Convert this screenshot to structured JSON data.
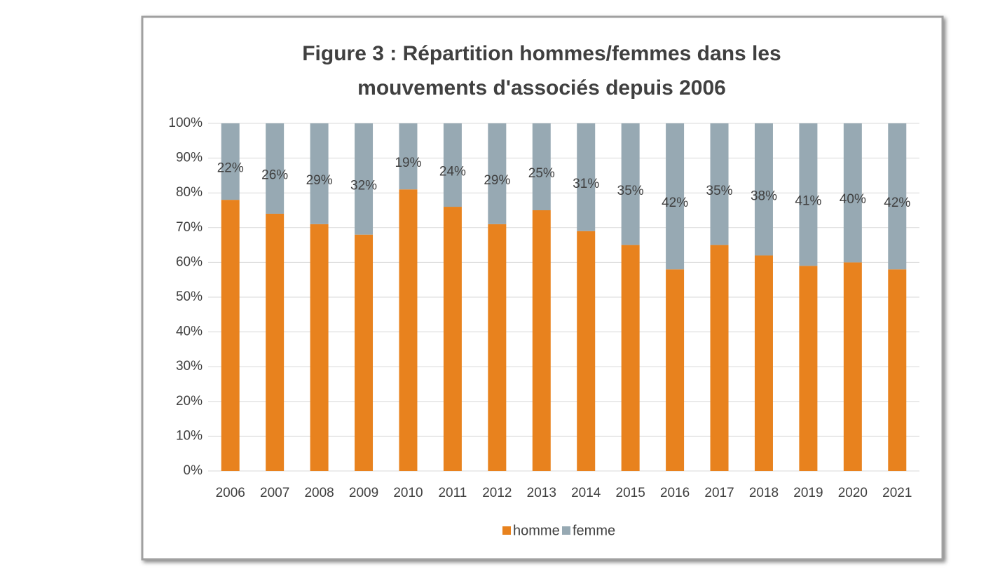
{
  "chart_data": {
    "type": "stacked_bar",
    "title": [
      "Figure 3 : Répartition hommes/femmes dans les",
      "mouvements d'associés depuis 2006"
    ],
    "categories": [
      "2006",
      "2007",
      "2008",
      "2009",
      "2010",
      "2011",
      "2012",
      "2013",
      "2014",
      "2015",
      "2016",
      "2017",
      "2018",
      "2019",
      "2020",
      "2021"
    ],
    "series": [
      {
        "name": "homme",
        "color": "#e8821e",
        "values": [
          78,
          74,
          71,
          68,
          81,
          76,
          71,
          75,
          69,
          65,
          58,
          65,
          62,
          59,
          60,
          58
        ]
      },
      {
        "name": "femme",
        "color": "#97a9b3",
        "values": [
          22,
          26,
          29,
          32,
          19,
          24,
          29,
          25,
          31,
          35,
          42,
          35,
          38,
          41,
          40,
          42
        ],
        "value_labels": [
          "22%",
          "26%",
          "29%",
          "32%",
          "19%",
          "24%",
          "29%",
          "25%",
          "31%",
          "35%",
          "42%",
          "35%",
          "38%",
          "41%",
          "40%",
          "42%"
        ]
      }
    ],
    "ylim": [
      0,
      100
    ],
    "yticks": [
      {
        "value": 0,
        "label": "0%"
      },
      {
        "value": 10,
        "label": "10%"
      },
      {
        "value": 20,
        "label": "20%"
      },
      {
        "value": 30,
        "label": "30%"
      },
      {
        "value": 40,
        "label": "40%"
      },
      {
        "value": 50,
        "label": "50%"
      },
      {
        "value": 60,
        "label": "60%"
      },
      {
        "value": 70,
        "label": "70%"
      },
      {
        "value": 80,
        "label": "80%"
      },
      {
        "value": 90,
        "label": "90%"
      },
      {
        "value": 100,
        "label": "100%"
      }
    ],
    "grid": true,
    "legend": "bottom"
  }
}
